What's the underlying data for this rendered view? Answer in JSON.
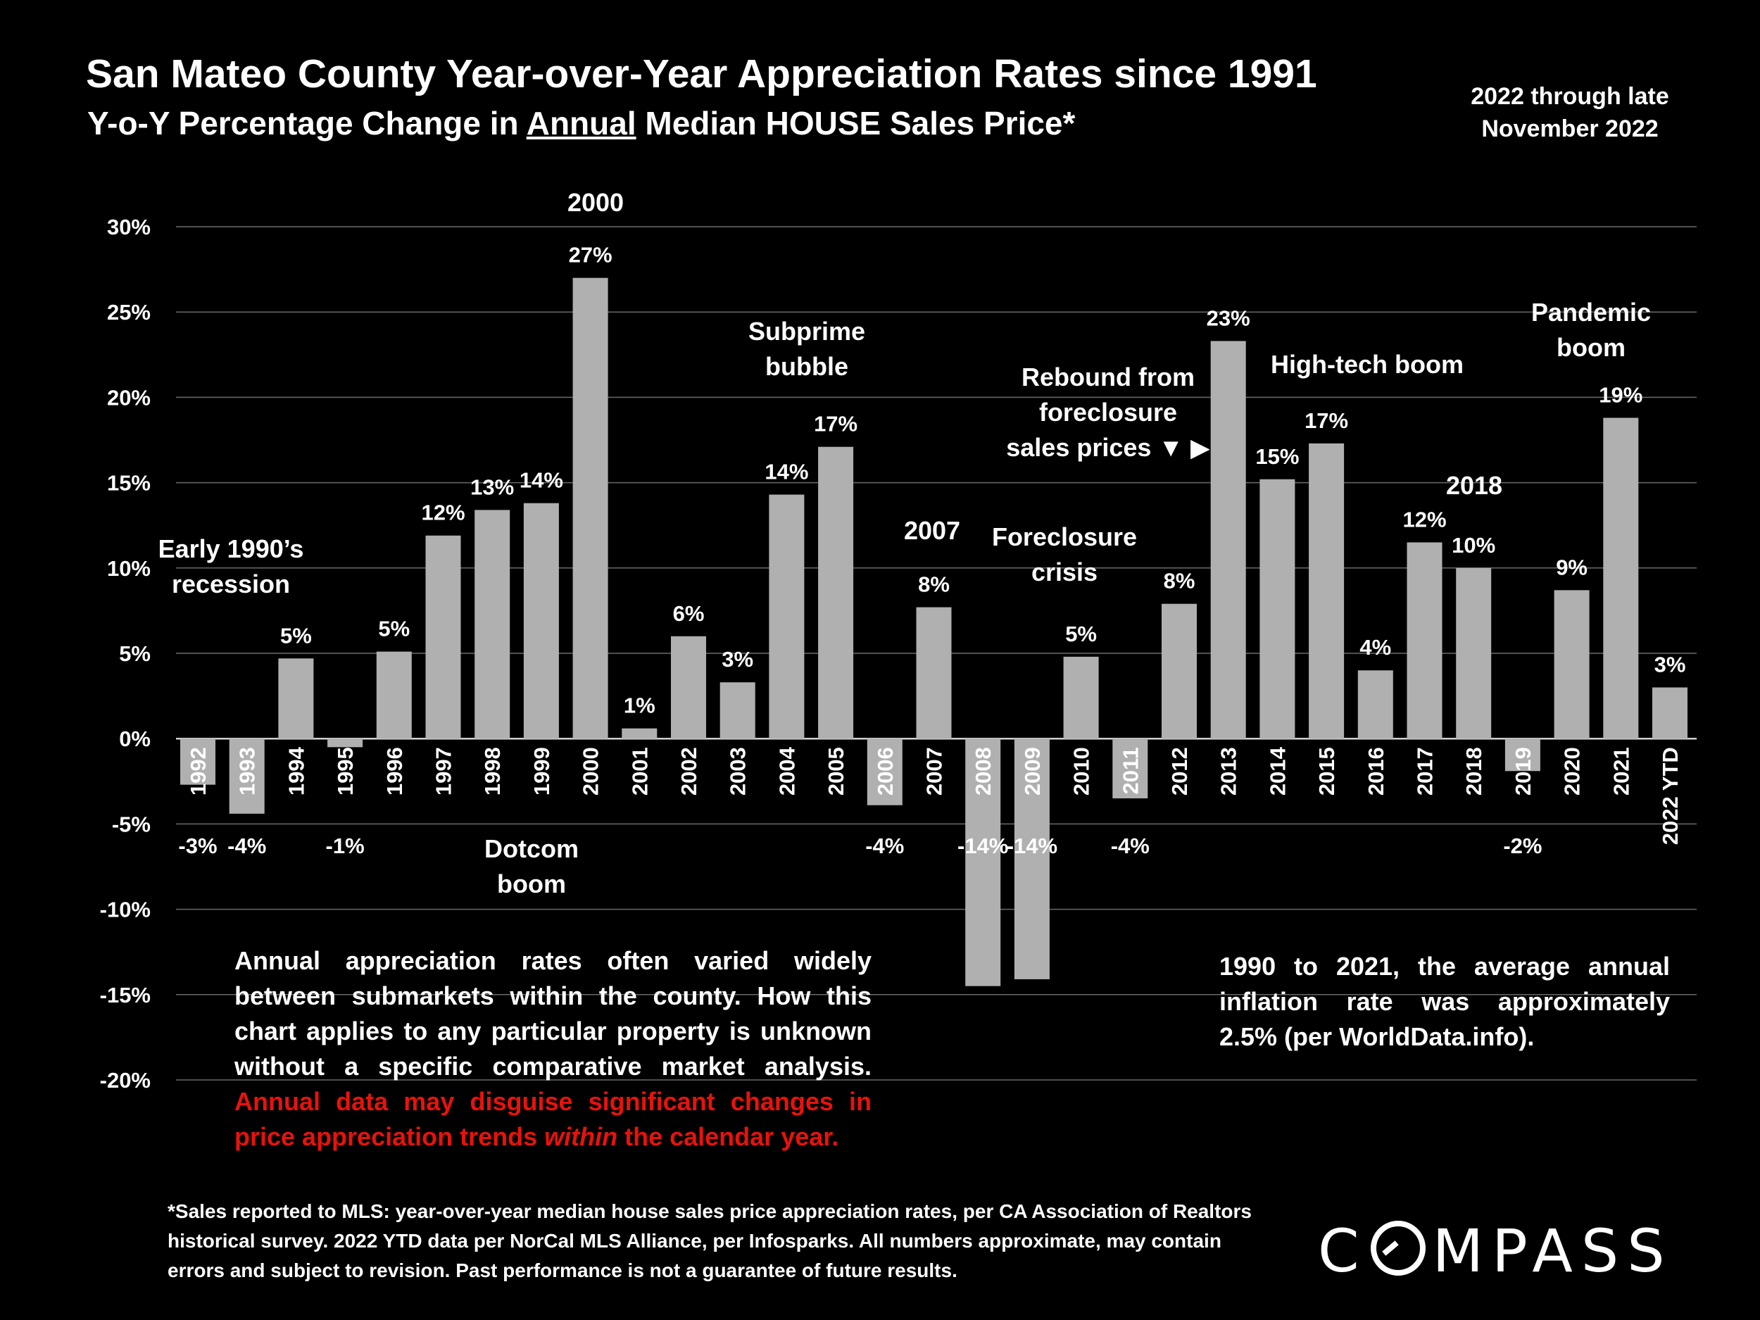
{
  "header": {
    "title": "San Mateo County Year-over-Year Appreciation Rates since 1991",
    "subtitle_pre": "Y-o-Y Percentage Change in ",
    "subtitle_underlined": "Annual",
    "subtitle_post": " Median HOUSE Sales Price*",
    "period_line1": "2022 through late",
    "period_line2": "November 2022"
  },
  "chart_data": {
    "type": "bar",
    "categories": [
      "1992",
      "1993",
      "1994",
      "1995",
      "1996",
      "1997",
      "1998",
      "1999",
      "2000",
      "2001",
      "2002",
      "2003",
      "2004",
      "2005",
      "2006",
      "2007",
      "2008",
      "2009",
      "2010",
      "2011",
      "2012",
      "2013",
      "2014",
      "2015",
      "2016",
      "2017",
      "2018",
      "2019",
      "2020",
      "2021",
      "2022 YTD"
    ],
    "values": [
      -2.7,
      -4.4,
      4.7,
      -0.5,
      5.1,
      11.9,
      13.4,
      13.8,
      27.0,
      0.6,
      6.0,
      3.3,
      14.3,
      17.1,
      -3.9,
      7.7,
      -14.5,
      -14.1,
      4.8,
      -3.5,
      7.9,
      23.3,
      15.2,
      17.3,
      4.0,
      11.5,
      10.0,
      -1.9,
      8.7,
      18.8,
      3.0
    ],
    "data_labels": [
      "-3%",
      "-4%",
      "5%",
      "-1%",
      "5%",
      "12%",
      "13%",
      "14%",
      "27%",
      "1%",
      "6%",
      "3%",
      "14%",
      "17%",
      "-4%",
      "8%",
      "-14%",
      "-14%",
      "5%",
      "-4%",
      "8%",
      "23%",
      "15%",
      "17%",
      "4%",
      "12%",
      "10%",
      "-2%",
      "9%",
      "19%",
      "3%"
    ],
    "ylim": [
      -20,
      30
    ],
    "yticks": [
      30,
      25,
      20,
      15,
      10,
      5,
      0,
      -5,
      -10,
      -15,
      -20
    ],
    "ytick_labels": [
      "30%",
      "25%",
      "20%",
      "15%",
      "10%",
      "5%",
      "0%",
      "-5%",
      "-10%",
      "-15%",
      "-20%"
    ],
    "grid": true,
    "bar_color": "#b0b0b0",
    "xlabel": "",
    "ylabel": "",
    "annotations": [
      {
        "lines": [
          "Early 1990’s",
          "recession"
        ]
      },
      {
        "lines": [
          "Dotcom",
          "boom"
        ]
      },
      {
        "lines": [
          "2000"
        ]
      },
      {
        "lines": [
          "Subprime",
          "bubble"
        ]
      },
      {
        "lines": [
          "2007"
        ]
      },
      {
        "lines": [
          "Foreclosure",
          "crisis"
        ]
      },
      {
        "lines": [
          "Rebound from",
          "foreclosure",
          "sales prices ▼ ▶"
        ]
      },
      {
        "lines": [
          "High-tech boom"
        ]
      },
      {
        "lines": [
          "2018"
        ]
      },
      {
        "lines": [
          "Pandemic",
          "boom"
        ]
      }
    ]
  },
  "notes": {
    "left_main": "Annual appreciation rates often varied widely between submarkets within the county. How this chart applies to any particular property is unknown without a specific comparative market analysis. ",
    "left_red_1": "Annual data may disguise significant changes in price appreciation trends ",
    "left_red_italic": "within",
    "left_red_2": " the calendar year.",
    "right": "1990 to 2021, the average annual inflation rate was approximately 2.5% (per WorldData.info)."
  },
  "footnote": "*Sales reported to MLS: year-over-year median house sales price appreciation rates, per CA Association of Realtors historical survey. 2022 YTD data per NorCal MLS Alliance, per Infosparks. All numbers approximate, may contain errors and subject to revision. Past performance is not a guarantee of future results.",
  "logo": {
    "prefix": "C",
    "suffix": "MPASS"
  }
}
